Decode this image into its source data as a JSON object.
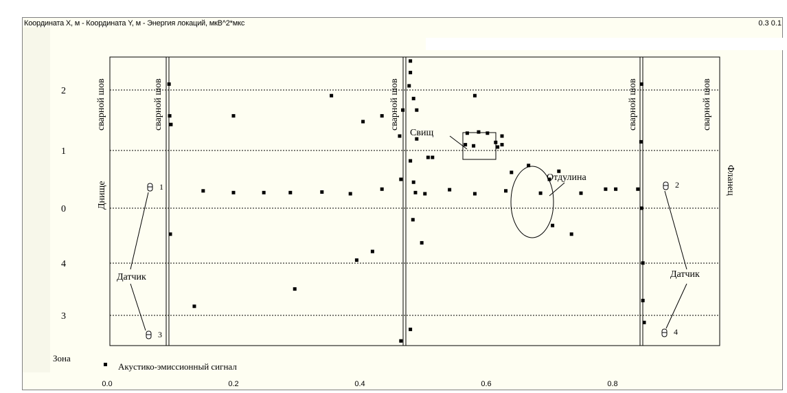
{
  "title_left": "Координата X, м - Координата Y, м - Энергия локаций, мкВ^2*мкс",
  "title_right": "0.3  0.1",
  "chart_data": {
    "type": "scatter",
    "title": "Координата X, м - Координата Y, м - Энергия локаций, мкВ^2*мкс",
    "xlabel": "",
    "ylabel": "",
    "xlim": [
      -0.005,
      1.0
    ],
    "x_ticks": [
      "0.0",
      "0.2",
      "0.4",
      "0.6",
      "0.8"
    ],
    "x_tick_values": [
      0.0,
      0.2,
      0.4,
      0.6,
      0.8
    ],
    "zones": [
      "2",
      "1",
      "0",
      "4",
      "3"
    ],
    "zone_axis_label": "Зона",
    "grid": "dotted-horizontal",
    "weld_seams_x": [
      0.1,
      0.475,
      0.85
    ],
    "series": [
      {
        "name": "Акустико-эмиссионный сигнал",
        "points": [
          [
            0.098,
            2.15
          ],
          [
            0.099,
            1.6
          ],
          [
            0.101,
            1.45
          ],
          [
            0.1,
            -0.45
          ],
          [
            0.138,
            -1.7
          ],
          [
            0.152,
            0.3
          ],
          [
            0.2,
            0.27
          ],
          [
            0.2,
            1.6
          ],
          [
            0.248,
            0.27
          ],
          [
            0.29,
            0.27
          ],
          [
            0.297,
            -1.4
          ],
          [
            0.34,
            0.28
          ],
          [
            0.355,
            1.95
          ],
          [
            0.385,
            0.25
          ],
          [
            0.395,
            -0.9
          ],
          [
            0.405,
            1.5
          ],
          [
            0.42,
            -0.75
          ],
          [
            0.435,
            1.6
          ],
          [
            0.435,
            0.33
          ],
          [
            0.463,
            1.25
          ],
          [
            0.465,
            0.5
          ],
          [
            0.465,
            -2.3
          ],
          [
            0.468,
            1.7
          ],
          [
            0.48,
            2.75
          ],
          [
            0.48,
            2.55
          ],
          [
            0.48,
            2.35
          ],
          [
            0.478,
            2.12
          ],
          [
            0.485,
            1.9
          ],
          [
            0.49,
            1.7
          ],
          [
            0.49,
            1.2
          ],
          [
            0.485,
            0.45
          ],
          [
            0.484,
            -0.2
          ],
          [
            0.48,
            -2.1
          ],
          [
            0.48,
            0.82
          ],
          [
            0.488,
            0.27
          ],
          [
            0.508,
            0.88
          ],
          [
            0.515,
            0.88
          ],
          [
            0.498,
            -0.6
          ],
          [
            0.503,
            0.25
          ],
          [
            0.542,
            0.32
          ],
          [
            0.567,
            1.1
          ],
          [
            0.57,
            1.3
          ],
          [
            0.58,
            1.08
          ],
          [
            0.582,
            0.25
          ],
          [
            0.582,
            1.95
          ],
          [
            0.588,
            1.32
          ],
          [
            0.602,
            1.3
          ],
          [
            0.615,
            1.14
          ],
          [
            0.618,
            1.06
          ],
          [
            0.625,
            1.25
          ],
          [
            0.625,
            1.1
          ],
          [
            0.631,
            0.3
          ],
          [
            0.64,
            0.62
          ],
          [
            0.667,
            0.74
          ],
          [
            0.686,
            0.26
          ],
          [
            0.7,
            0.5
          ],
          [
            0.715,
            0.64
          ],
          [
            0.735,
            -0.45
          ],
          [
            0.705,
            -0.3
          ],
          [
            0.75,
            0.26
          ],
          [
            0.789,
            0.33
          ],
          [
            0.805,
            0.33
          ],
          [
            0.84,
            0.33
          ],
          [
            0.846,
            2.15
          ],
          [
            0.845,
            1.15
          ],
          [
            0.846,
            0.0
          ],
          [
            0.848,
            -0.95
          ],
          [
            0.848,
            -1.6
          ],
          [
            0.85,
            -1.98
          ]
        ]
      }
    ],
    "legend": {
      "entry": "Акустико-эмиссионный сигнал",
      "position": "bottom-left"
    },
    "annotations": {
      "bottom": "Днище",
      "flange": "Фланец",
      "weld": "сварной шов",
      "fistula": "Свищ",
      "dent": "Отдулина",
      "sensor": "Датчик",
      "sensor_ids": [
        "1",
        "2",
        "3",
        "4"
      ]
    }
  }
}
